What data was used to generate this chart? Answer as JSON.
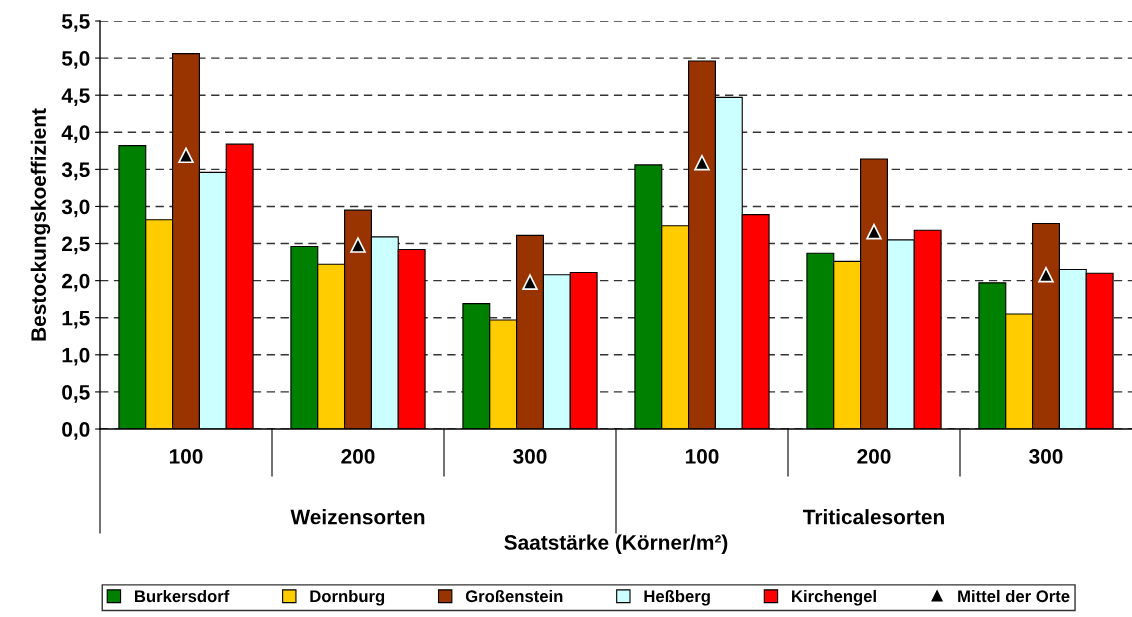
{
  "chart_data": {
    "type": "bar",
    "xlabel": "Saatstärke (Körner/m²)",
    "ylabel": "Bestockungskoeffizient",
    "categories": [
      "100",
      "200",
      "300",
      "100",
      "200",
      "300"
    ],
    "series": [
      {
        "name": "Burkersdorf",
        "color": "#008000",
        "values": [
          3.82,
          2.46,
          1.69,
          3.56,
          2.37,
          1.97
        ]
      },
      {
        "name": "Dornburg",
        "color": "#ffcc00",
        "values": [
          2.82,
          2.22,
          1.47,
          2.74,
          2.26,
          1.55
        ]
      },
      {
        "name": "Großenstein",
        "color": "#993300",
        "values": [
          5.06,
          2.95,
          2.61,
          4.96,
          3.64,
          2.77
        ]
      },
      {
        "name": "Heßberg",
        "color": "#ccffff",
        "values": [
          3.46,
          2.59,
          2.08,
          4.47,
          2.55,
          2.15
        ]
      },
      {
        "name": "Kirchengel",
        "color": "#ff0000",
        "values": [
          3.84,
          2.42,
          2.11,
          2.89,
          2.68,
          2.1
        ]
      },
      {
        "name": "Mittel der Orte",
        "type": "scatter",
        "marker": "triangle",
        "color": "#000000",
        "values": [
          3.69,
          2.48,
          1.98,
          3.59,
          2.66,
          2.08
        ]
      }
    ],
    "annotations": [
      "Weizensorten",
      "Triticalesorten"
    ],
    "ylim": [
      0,
      5.5
    ],
    "yticks": [
      {
        "value": 0,
        "label": "0,0"
      },
      {
        "value": 0.5,
        "label": "0,5"
      },
      {
        "value": 1,
        "label": "1,0"
      },
      {
        "value": 1.5,
        "label": "1,5"
      },
      {
        "value": 2,
        "label": "2,0"
      },
      {
        "value": 2.5,
        "label": "2,5"
      },
      {
        "value": 3,
        "label": "3,0"
      },
      {
        "value": 3.5,
        "label": "3,5"
      },
      {
        "value": 4,
        "label": "4,0"
      },
      {
        "value": 4.5,
        "label": "4,5"
      },
      {
        "value": 5,
        "label": "5,0"
      },
      {
        "value": 5.5,
        "label": "5,5"
      }
    ],
    "grid": "y",
    "line_style": "dashed",
    "legend": "bottom"
  }
}
